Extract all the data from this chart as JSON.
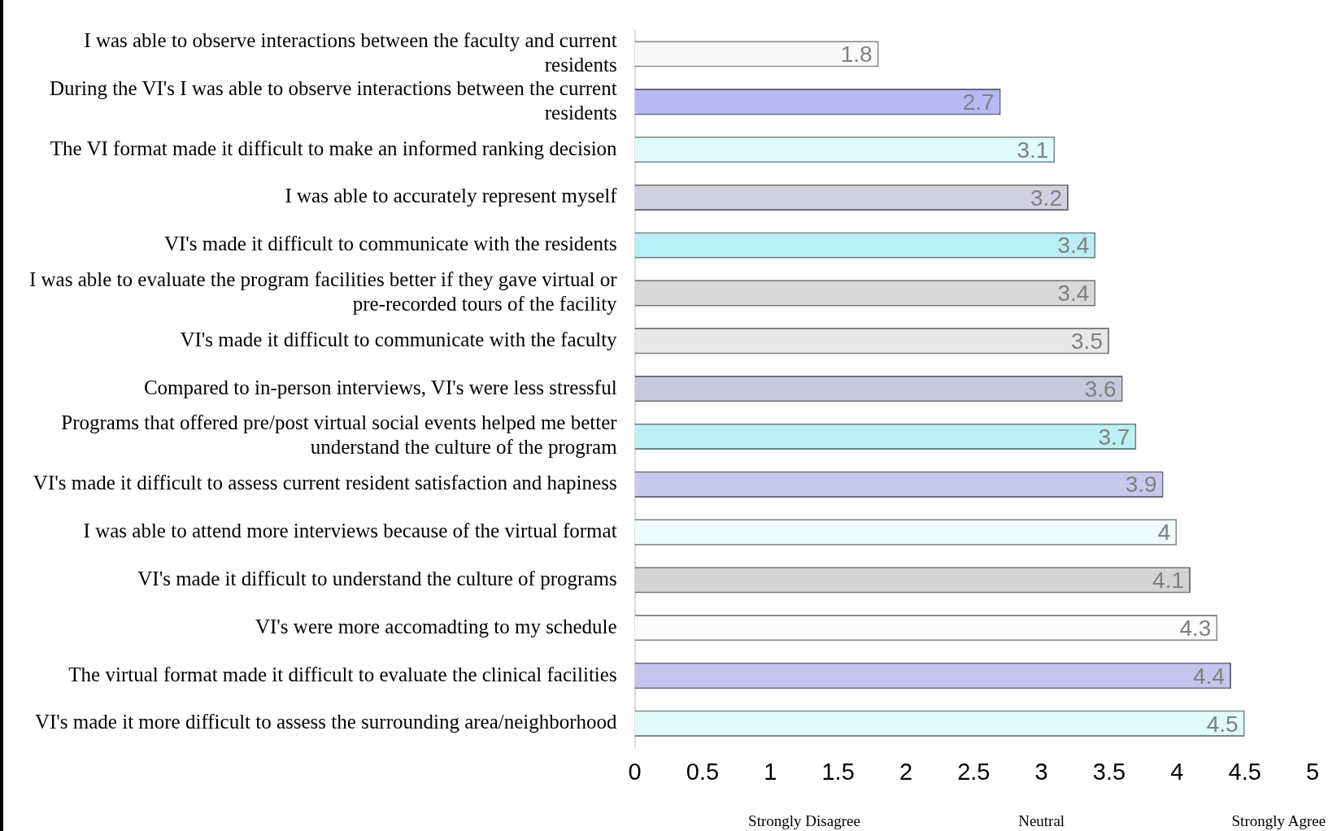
{
  "chart_data": {
    "type": "bar",
    "orientation": "horizontal",
    "data_labels": true,
    "grid": false,
    "legend": false,
    "categories": [
      "I was able to observe interactions between the faculty and current residents",
      "During the VI's I was able to observe interactions between the current residents",
      "The VI format made it difficult to make an informed ranking decision",
      "I was able to accurately represent myself",
      "VI's made it difficult to communicate with the residents",
      "I was able to evaluate the program facilities better if they gave virtual or pre-recorded tours of the facility",
      "VI's made it difficult to communicate with the faculty",
      "Compared to in-person interviews, VI's were less stressful",
      "Programs that offered pre/post virtual social events helped me better understand the culture of the program",
      "VI's made it difficult to assess current resident satisfaction and hapiness",
      "I was able to attend more interviews because of the virtual format",
      "VI's made it difficult to understand the culture of programs",
      "VI's were more accomadting to my schedule",
      "The virtual format made it difficult to evaluate the clinical facilities",
      "VI's made it more difficult to assess the surrounding area/neighborhood"
    ],
    "values": [
      1.8,
      2.7,
      3.1,
      3.2,
      3.4,
      3.4,
      3.5,
      3.6,
      3.7,
      3.9,
      4,
      4.1,
      4.3,
      4.4,
      4.5
    ],
    "colors": [
      "#fafafa",
      "#b8b8f4",
      "#e0fcfc",
      "#d0d0e0",
      "#b8eef4",
      "#d8d8d8",
      "#e8e8e8",
      "#c8c8dc",
      "#bcf0f4",
      "#c8c8ec",
      "#eefcfc",
      "#d4d4d4",
      "#fcfcfc",
      "#c4c4ec",
      "#e0fcfc"
    ],
    "xlim": [
      0,
      5
    ],
    "xticks": [
      0,
      0.5,
      1,
      1.5,
      2,
      2.5,
      3,
      3.5,
      4,
      4.5,
      5
    ],
    "annotations": [
      "Strongly Disagree",
      "Neutral",
      "Strongly Agree"
    ]
  }
}
